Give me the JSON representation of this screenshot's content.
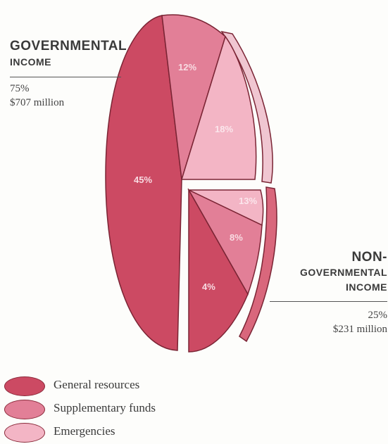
{
  "chart_data": {
    "type": "pie",
    "groups": [
      {
        "name": "Governmental income",
        "heading_line1": "Governmental",
        "heading_line2": "income",
        "percent_label": "75%",
        "amount_label": "$707 million",
        "slices": [
          {
            "category": "General resources",
            "value": 45,
            "label": "45%"
          },
          {
            "category": "Supplementary funds",
            "value": 12,
            "label": "12%"
          },
          {
            "category": "Emergencies",
            "value": 18,
            "label": "18%"
          }
        ]
      },
      {
        "name": "Non-governmental income",
        "heading_line1": "Non-",
        "heading_line2": "governmental",
        "heading_line3": "income",
        "percent_label": "25%",
        "amount_label": "$231 million",
        "slices": [
          {
            "category": "General resources",
            "value": 13,
            "label": "13%"
          },
          {
            "category": "Supplementary funds",
            "value": 8,
            "label": "8%"
          },
          {
            "category": "Emergencies",
            "value": 4,
            "label": "4%"
          }
        ]
      }
    ],
    "legend": [
      {
        "label": "General resources",
        "color": "#cc4a63"
      },
      {
        "label": "Supplementary funds",
        "color": "#e27f97"
      },
      {
        "label": "Emergencies",
        "color": "#f3b5c5"
      }
    ],
    "legend_placement": "bottom-left"
  }
}
